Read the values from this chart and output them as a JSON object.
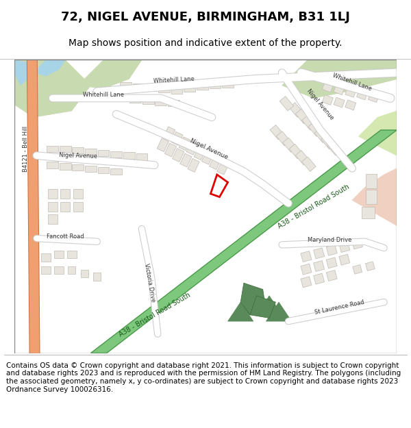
{
  "title": "72, NIGEL AVENUE, BIRMINGHAM, B31 1LJ",
  "subtitle": "Map shows position and indicative extent of the property.",
  "footer": "Contains OS data © Crown copyright and database right 2021. This information is subject to Crown copyright and database rights 2023 and is reproduced with the permission of HM Land Registry. The polygons (including the associated geometry, namely x, y co-ordinates) are subject to Crown copyright and database rights 2023 Ordnance Survey 100026316.",
  "map_bg": "#f0eeea",
  "road_color": "#ffffff",
  "road_edge_color": "#cccccc",
  "green_road_color": "#7ec87e",
  "green_road_edge": "#4a9a4a",
  "orange_road_color": "#f0a070",
  "orange_road_edge": "#cc7040",
  "building_fill": "#e8e4de",
  "building_edge": "#c0bcb4",
  "park_fill": "#c8dab0",
  "dark_green_fill": "#5a8a5a",
  "water_fill": "#a8d4e8",
  "red_poly_color": "#dd0000",
  "title_fontsize": 13,
  "subtitle_fontsize": 10,
  "footer_fontsize": 7.5,
  "label_fontsize": 7
}
